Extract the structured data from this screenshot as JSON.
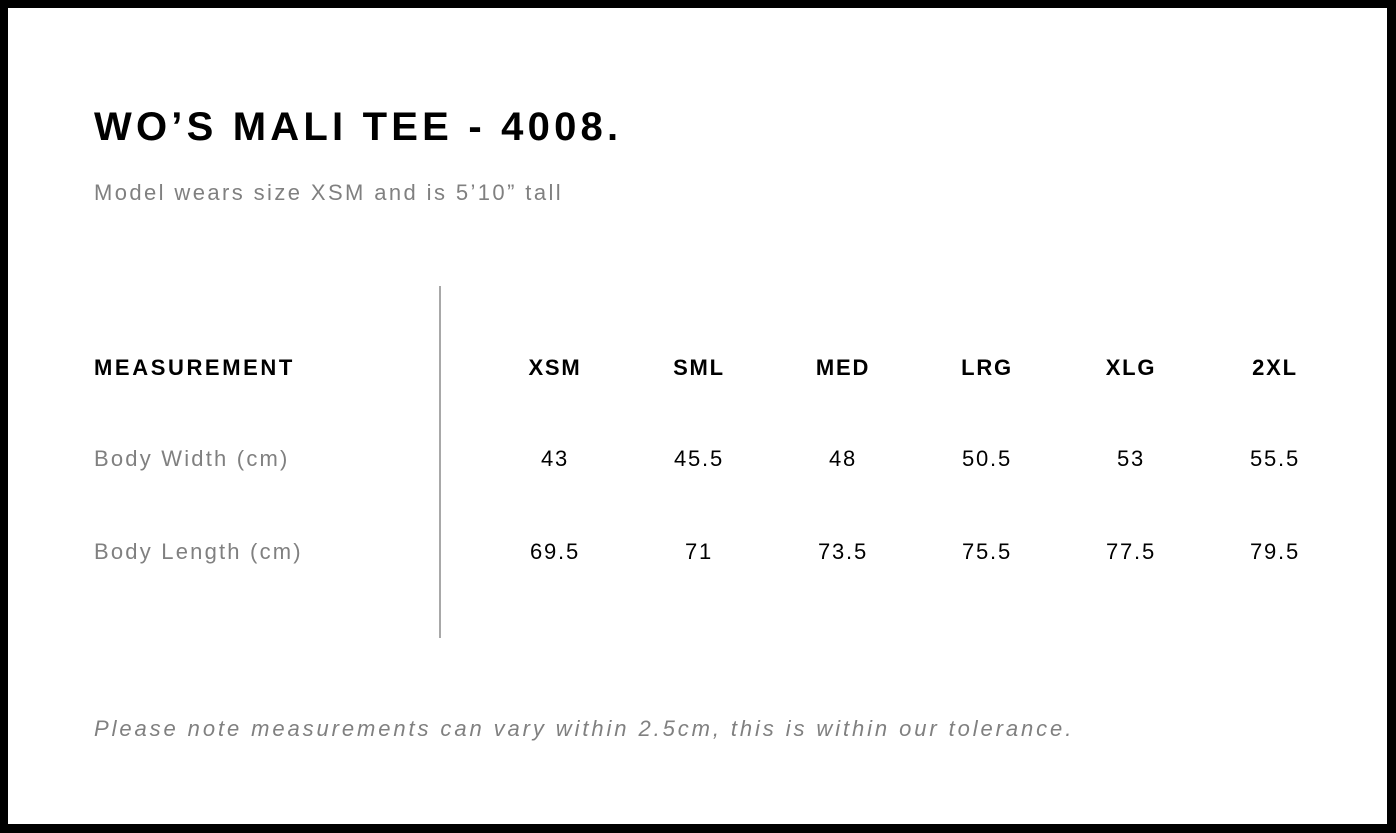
{
  "title": "WO’S MALI TEE - 4008.",
  "subtitle": "Model wears size XSM and is 5’10” tall",
  "table": {
    "header": "MEASUREMENT",
    "sizes": [
      "XSM",
      "SML",
      "MED",
      "LRG",
      "XLG",
      "2XL"
    ],
    "rows": [
      {
        "label": "Body Width (cm)",
        "values": [
          "43",
          "45.5",
          "48",
          "50.5",
          "53",
          "55.5"
        ]
      },
      {
        "label": "Body Length (cm)",
        "values": [
          "69.5",
          "71",
          "73.5",
          "75.5",
          "77.5",
          "79.5"
        ]
      }
    ]
  },
  "note": "Please note measurements can vary within 2.5cm, this is within our tolerance."
}
